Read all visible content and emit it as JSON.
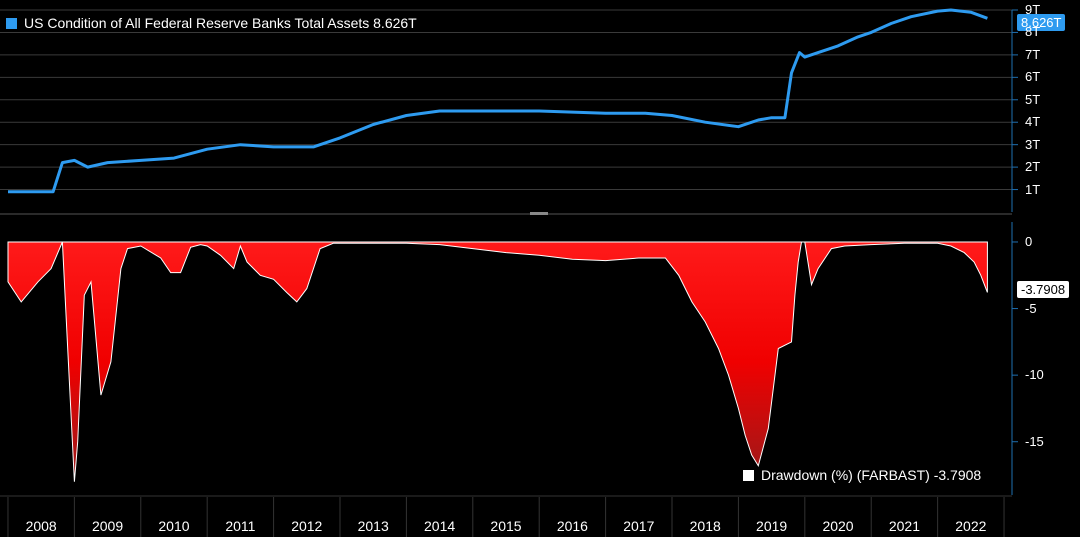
{
  "chart_data": [
    {
      "type": "line",
      "legend": "US Condition of All Federal Reserve Banks Total Assets 8.626T",
      "last_value_label": "8.626T",
      "color": "#2e9bf0",
      "ylim": [
        0,
        9
      ],
      "yticks": [
        "1T",
        "2T",
        "3T",
        "4T",
        "5T",
        "6T",
        "7T",
        "8T",
        "9T"
      ],
      "x": [
        2008.0,
        2008.68,
        2008.82,
        2009.0,
        2009.2,
        2009.5,
        2010.0,
        2010.5,
        2011.0,
        2011.5,
        2012.0,
        2012.6,
        2013.0,
        2013.5,
        2014.0,
        2014.5,
        2015.0,
        2016.0,
        2017.0,
        2017.6,
        2018.0,
        2018.5,
        2019.0,
        2019.3,
        2019.5,
        2019.7,
        2019.8,
        2019.92,
        2020.0,
        2020.2,
        2020.5,
        2020.8,
        2021.0,
        2021.3,
        2021.6,
        2022.0,
        2022.2,
        2022.5,
        2022.75
      ],
      "values": [
        0.9,
        0.9,
        2.2,
        2.3,
        2.0,
        2.2,
        2.3,
        2.4,
        2.8,
        3.0,
        2.9,
        2.9,
        3.3,
        3.9,
        4.3,
        4.5,
        4.5,
        4.5,
        4.4,
        4.4,
        4.3,
        4.0,
        3.8,
        4.1,
        4.2,
        4.2,
        6.2,
        7.1,
        6.9,
        7.1,
        7.4,
        7.8,
        8.0,
        8.4,
        8.7,
        8.95,
        9.0,
        8.9,
        8.63
      ]
    },
    {
      "type": "area",
      "legend": "Drawdown (%) (FARBAST) -3.7908",
      "last_value_label": "-3.7908",
      "color": "#ff0000",
      "ylim": [
        -19,
        1.5
      ],
      "yticks": [
        "0",
        "-5",
        "-10",
        "-15"
      ],
      "x": [
        2008.0,
        2008.2,
        2008.45,
        2008.65,
        2008.82,
        2008.9,
        2009.0,
        2009.05,
        2009.15,
        2009.25,
        2009.4,
        2009.55,
        2009.7,
        2009.8,
        2010.0,
        2010.3,
        2010.45,
        2010.6,
        2010.75,
        2010.9,
        2011.0,
        2011.2,
        2011.4,
        2011.5,
        2011.6,
        2011.8,
        2012.0,
        2012.2,
        2012.35,
        2012.5,
        2012.7,
        2012.9,
        2013.5,
        2014.0,
        2014.5,
        2015.0,
        2015.5,
        2016.0,
        2016.5,
        2017.0,
        2017.5,
        2017.9,
        2018.1,
        2018.3,
        2018.5,
        2018.7,
        2018.85,
        2019.0,
        2019.1,
        2019.2,
        2019.3,
        2019.45,
        2019.6,
        2019.8,
        2019.85,
        2019.9,
        2019.95,
        2020.0,
        2020.1,
        2020.2,
        2020.4,
        2020.6,
        2021.0,
        2021.5,
        2022.0,
        2022.2,
        2022.4,
        2022.55,
        2022.65,
        2022.75
      ],
      "values": [
        -3,
        -4.5,
        -3,
        -2,
        0,
        -8,
        -18,
        -15,
        -4,
        -3,
        -11.5,
        -9,
        -2,
        -0.5,
        -0.3,
        -1.2,
        -2.3,
        -2.3,
        -0.4,
        -0.2,
        -0.3,
        -1,
        -2,
        -0.3,
        -1.5,
        -2.5,
        -2.8,
        -3.8,
        -4.5,
        -3.5,
        -0.5,
        -0.1,
        -0.1,
        -0.1,
        -0.2,
        -0.5,
        -0.8,
        -1,
        -1.3,
        -1.4,
        -1.2,
        -1.2,
        -2.5,
        -4.5,
        -6,
        -8,
        -10,
        -12.5,
        -14.5,
        -16,
        -16.8,
        -14,
        -8,
        -7.5,
        -4,
        -1.5,
        0,
        0,
        -3.2,
        -2,
        -0.5,
        -0.3,
        -0.2,
        -0.1,
        -0.1,
        -0.3,
        -0.8,
        -1.5,
        -2.5,
        -3.79
      ]
    }
  ],
  "x_axis": {
    "range": [
      2007.88,
      2023.12
    ],
    "labels": [
      "2008",
      "2009",
      "2010",
      "2011",
      "2012",
      "2013",
      "2014",
      "2015",
      "2016",
      "2017",
      "2018",
      "2019",
      "2020",
      "2021",
      "2022"
    ]
  }
}
